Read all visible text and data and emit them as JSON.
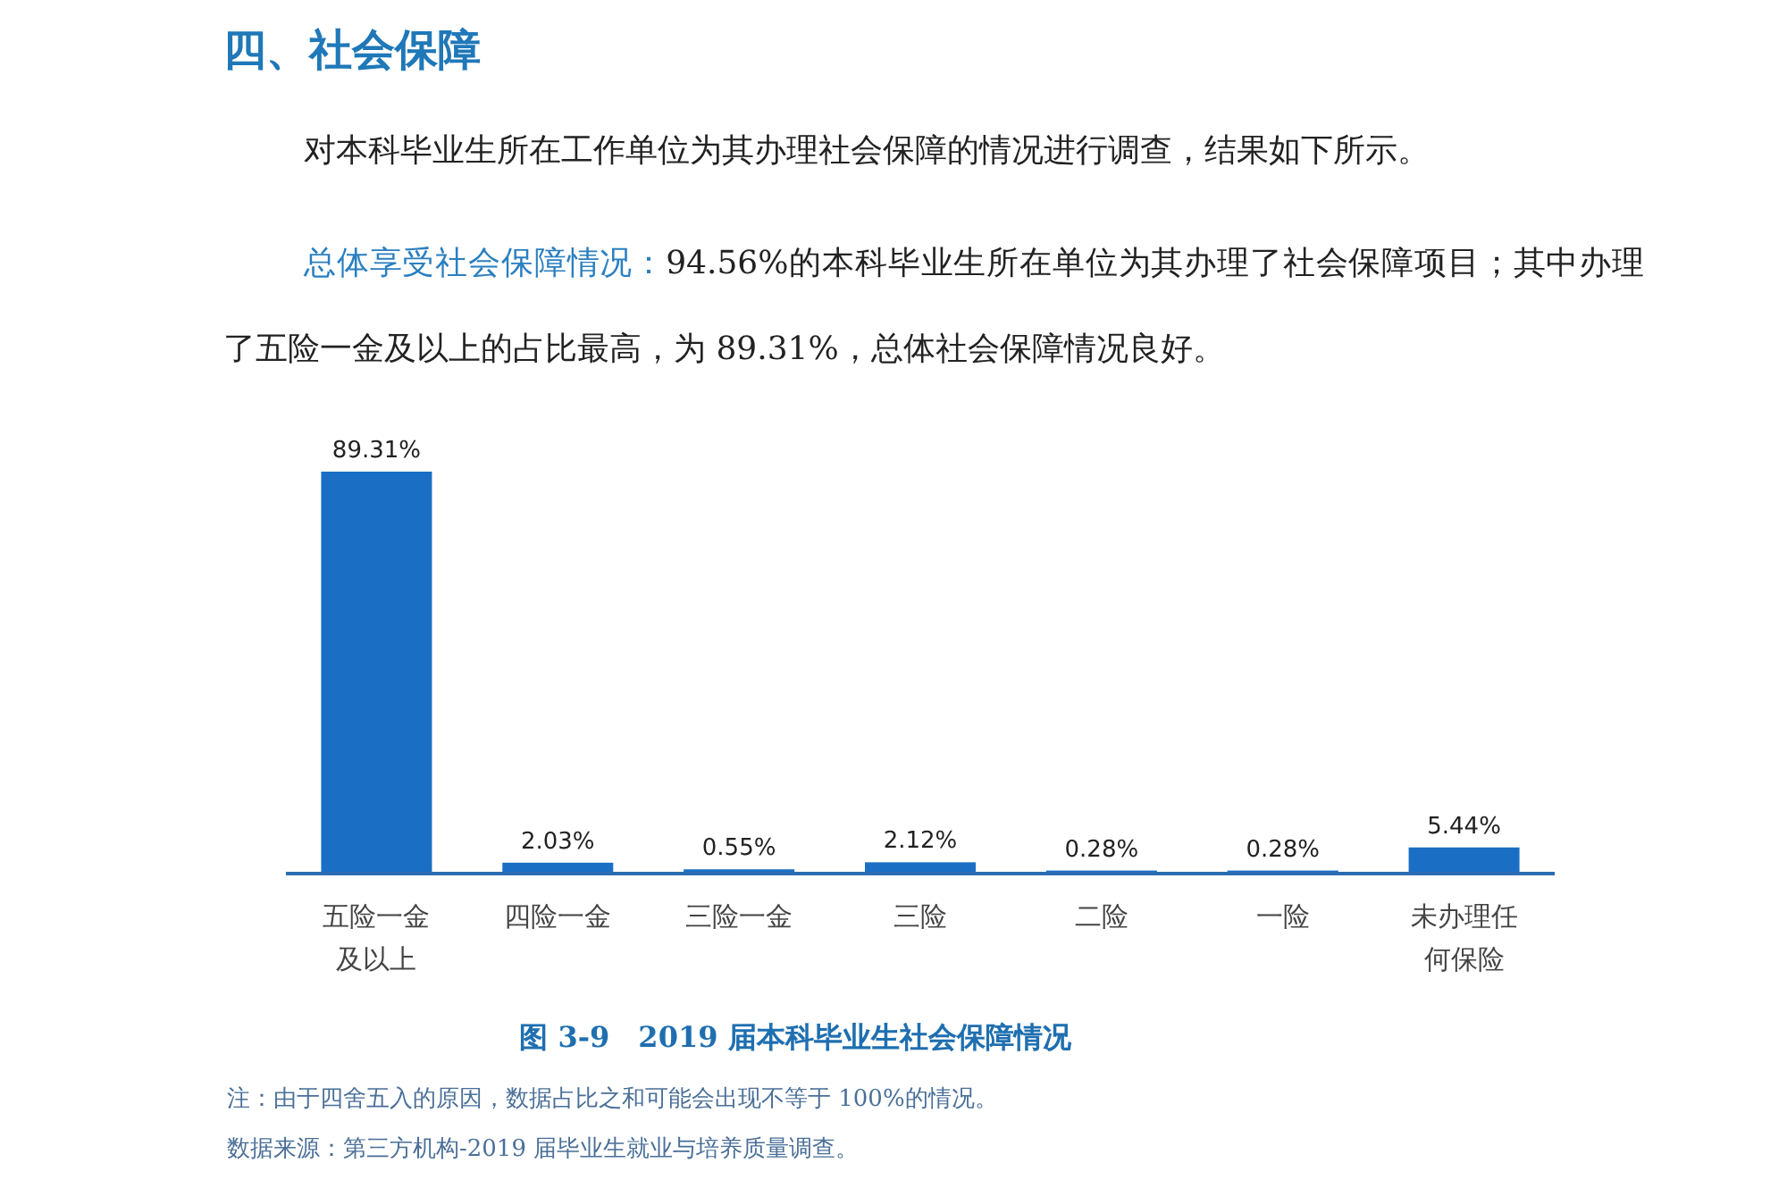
{
  "chart_data": {
    "type": "bar",
    "title": "图 3-9　2019 届本科毕业生社会保障情况",
    "categories": [
      "五险一金及以上",
      "四险一金",
      "三险一金",
      "三险",
      "二险",
      "一险",
      "未办理任何保险"
    ],
    "values": [
      89.31,
      2.03,
      0.55,
      2.12,
      0.28,
      0.28,
      5.44
    ],
    "value_labels": [
      "89.31%",
      "2.03%",
      "0.55%",
      "2.12%",
      "0.28%",
      "0.28%",
      "5.44%"
    ],
    "color": "#1a6fc4",
    "annotations": [
      "四、社会保障",
      "对本科毕业生所在工作单位为其办理社会保障的情况进行调查，结果如下所示。",
      "总体享受社会保障情况：",
      "94.56%的本科毕业生所在单位为其办理了社会保障项目；其中办理了五险一金及以上的占比最高，为 89.31%，总体社会保障情况良好。",
      "注：由于四舍五入的原因，数据占比之和可能会出现不等于 100%的情况。",
      "数据来源：第三方机构-2019 届毕业生就业与培养质量调查。"
    ]
  }
}
